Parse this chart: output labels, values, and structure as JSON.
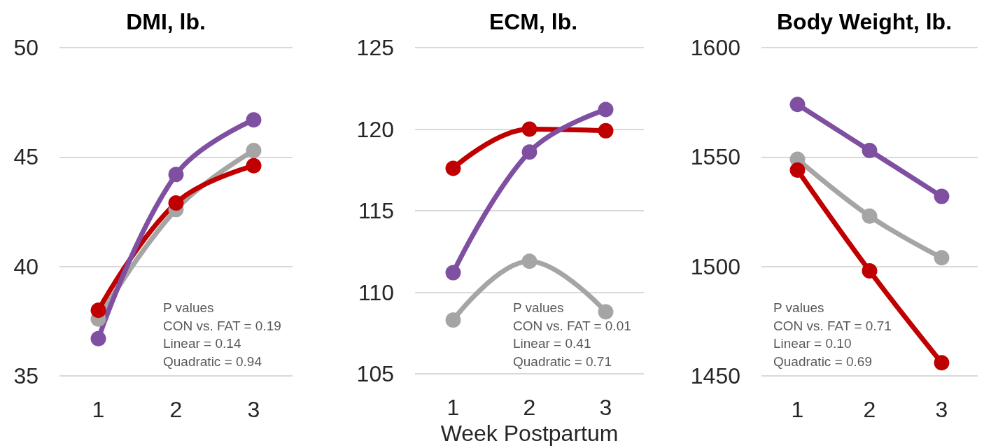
{
  "chart_data": [
    {
      "type": "line",
      "title": "DMI, lb.",
      "categories": [
        "1",
        "2",
        "3"
      ],
      "ylim": [
        35,
        50
      ],
      "yticks": [
        35,
        40,
        45,
        50
      ],
      "grid": "y",
      "marker": "circle",
      "series": [
        {
          "color": "#a5a5a5",
          "values": [
            37.6,
            42.6,
            45.3
          ]
        },
        {
          "color": "#c00000",
          "values": [
            38.0,
            42.9,
            44.6
          ]
        },
        {
          "color": "#7f4fa1",
          "values": [
            36.7,
            44.2,
            46.7
          ]
        }
      ],
      "annotations": [
        "P values",
        "CON vs. FAT = 0.19",
        "Linear = 0.14",
        "Quadratic = 0.94"
      ]
    },
    {
      "type": "line",
      "title": "ECM, lb.",
      "xlabel": "Week Postpartum",
      "categories": [
        "1",
        "2",
        "3"
      ],
      "ylim": [
        105,
        125
      ],
      "yticks": [
        105,
        110,
        115,
        120,
        125
      ],
      "grid": "y",
      "marker": "circle",
      "series": [
        {
          "color": "#a5a5a5",
          "values": [
            108.3,
            111.9,
            108.8
          ]
        },
        {
          "color": "#c00000",
          "values": [
            117.6,
            120.0,
            119.9
          ]
        },
        {
          "color": "#7f4fa1",
          "values": [
            111.2,
            118.6,
            121.2
          ]
        }
      ],
      "annotations": [
        "P values",
        "CON vs. FAT = 0.01",
        "Linear = 0.41",
        "Quadratic = 0.71"
      ]
    },
    {
      "type": "line",
      "title": "Body Weight, lb.",
      "categories": [
        "1",
        "2",
        "3"
      ],
      "ylim": [
        1450,
        1600
      ],
      "yticks": [
        1450,
        1500,
        1550,
        1600
      ],
      "grid": "y",
      "marker": "circle",
      "series": [
        {
          "color": "#a5a5a5",
          "values": [
            1549,
            1523,
            1504
          ]
        },
        {
          "color": "#c00000",
          "values": [
            1544,
            1498,
            1456
          ]
        },
        {
          "color": "#7f4fa1",
          "values": [
            1574,
            1553,
            1532
          ]
        }
      ],
      "annotations": [
        "P values",
        "CON vs. FAT = 0.71",
        "Linear = 0.10",
        "Quadratic = 0.69"
      ]
    }
  ]
}
